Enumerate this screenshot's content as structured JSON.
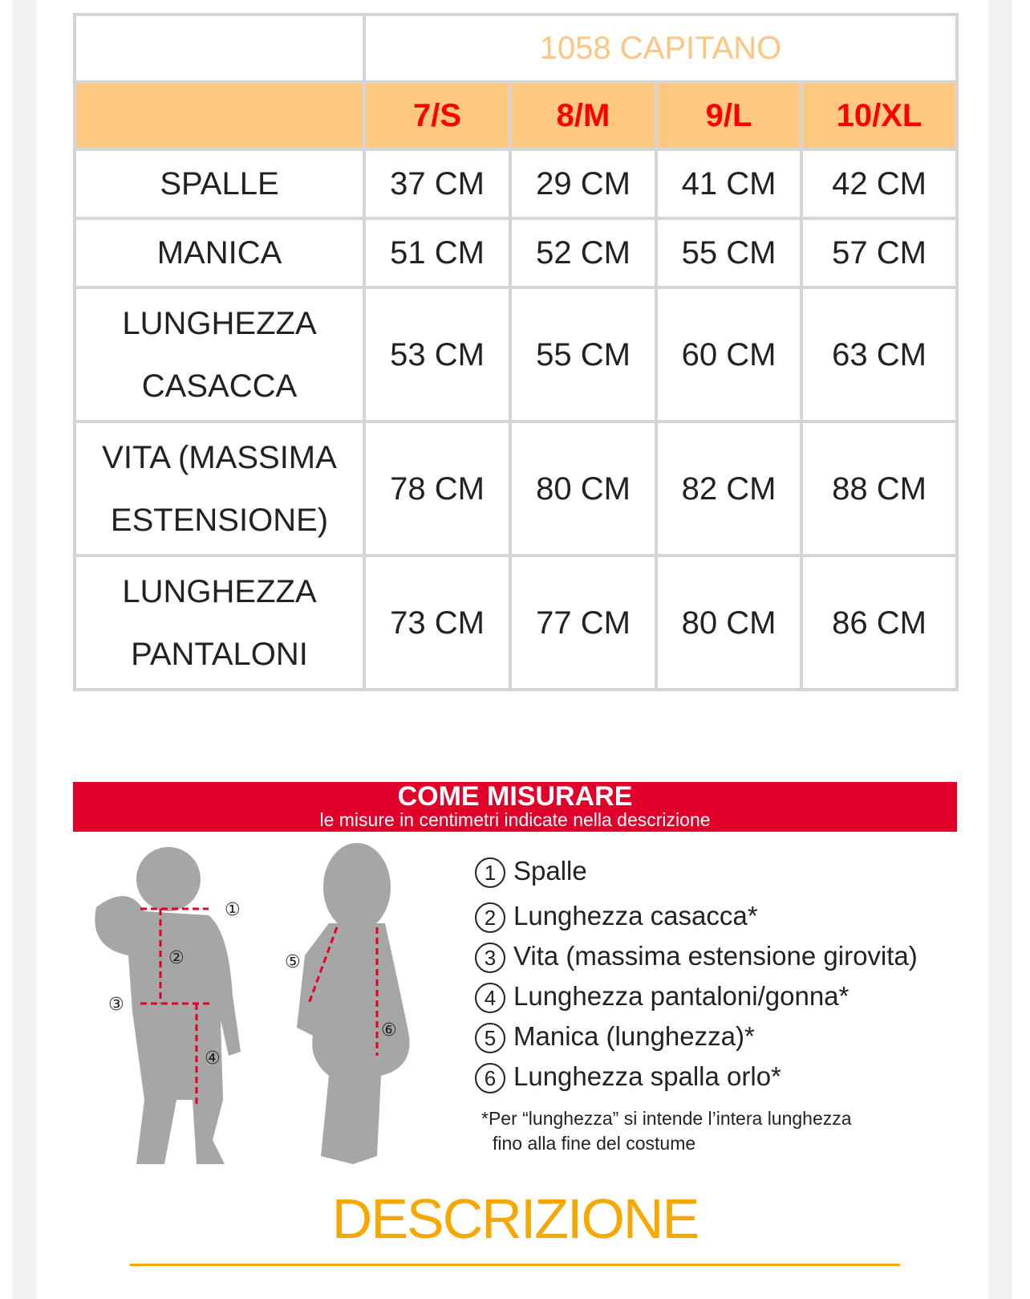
{
  "table": {
    "title": "1058 CAPITANO",
    "sizes": [
      "7/S",
      "8/M",
      "9/L",
      "10/XL"
    ],
    "rows": [
      {
        "label_lines": [
          "SPALLE"
        ],
        "values": [
          "37 CM",
          "29 CM",
          "41 CM",
          "42 CM"
        ]
      },
      {
        "label_lines": [
          "MANICA"
        ],
        "values": [
          "51 CM",
          "52 CM",
          "55 CM",
          "57 CM"
        ]
      },
      {
        "label_lines": [
          "LUNGHEZZA",
          "CASACCA"
        ],
        "values": [
          "53 CM",
          "55 CM",
          "60 CM",
          "63 CM"
        ]
      },
      {
        "label_lines": [
          "VITA (MASSIMA",
          "ESTENSIONE)"
        ],
        "values": [
          "78 CM",
          "80 CM",
          "82 CM",
          "88 CM"
        ]
      },
      {
        "label_lines": [
          "LUNGHEZZA",
          "PANTALONI"
        ],
        "values": [
          "73 CM",
          "77 CM",
          "80 CM",
          "86 CM"
        ]
      }
    ],
    "colors": {
      "title": "#fdc57f",
      "header_bg": "#fec880",
      "header_text": "#ff0000"
    }
  },
  "guide": {
    "title": "COME MISURARE",
    "subtitle": "le misure in centimetri indicate nella descrizione",
    "items": [
      {
        "num": "1",
        "label": "Spalle"
      },
      {
        "num": "2",
        "label": "Lunghezza casacca*"
      },
      {
        "num": "3",
        "label": "Vita (massima estensione girovita)"
      },
      {
        "num": "4",
        "label": "Lunghezza pantaloni/gonna*"
      },
      {
        "num": "5",
        "label": "Manica (lunghezza)*"
      },
      {
        "num": "6",
        "label": "Lunghezza spalla orlo*"
      }
    ],
    "note_lines": [
      "*Per “lunghezza” si intende l’intera lunghezza",
      "fino alla fine del costume"
    ],
    "banner_color": "#e2002a"
  },
  "section": {
    "title": "DESCRIZIONE",
    "color": "#f7a800"
  }
}
